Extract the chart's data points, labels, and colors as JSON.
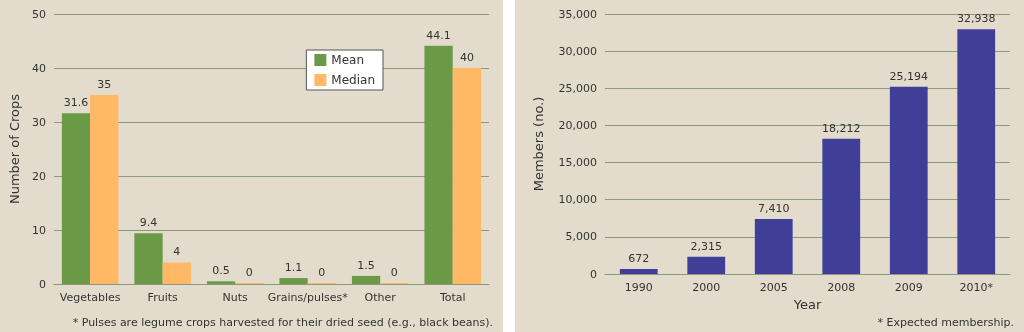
{
  "chart_data": [
    {
      "type": "bar",
      "ylabel": "Number of Crops",
      "categories": [
        "Vegetables",
        "Fruits",
        "Nuts",
        "Grains/pulses*",
        "Other",
        "Total"
      ],
      "series": [
        {
          "name": "Mean",
          "color": "#6b9a47",
          "values": [
            31.6,
            9.4,
            0.5,
            1.1,
            1.5,
            44.1
          ]
        },
        {
          "name": "Median",
          "color": "#ffb865",
          "values": [
            35,
            4,
            0,
            0,
            0,
            40
          ]
        }
      ],
      "ylim": [
        0,
        50
      ],
      "yticks": [
        0,
        10,
        20,
        30,
        40,
        50
      ],
      "grid": "y",
      "legend": "top right",
      "data_labels": true,
      "annotations": [
        "* Pulses are legume crops harvested for their dried seed (e.g., black beans)."
      ]
    },
    {
      "type": "bar",
      "xlabel": "Year",
      "ylabel": "Members (no.)",
      "categories": [
        "1990",
        "2000",
        "2005",
        "2008",
        "2009",
        "2010*"
      ],
      "series": [
        {
          "color": "#3f3f98",
          "values": [
            672,
            2315,
            7410,
            18212,
            25194,
            32938
          ],
          "value_labels": [
            "672",
            "2,315",
            "7,410",
            "18,212",
            "25,194",
            "32,938"
          ]
        }
      ],
      "ylim": [
        0,
        35000
      ],
      "yticks": [
        0,
        {
          "value": 5000,
          "label": "5,000"
        },
        {
          "value": 10000,
          "label": "10,000"
        },
        {
          "value": 15000,
          "label": "15,000"
        },
        {
          "value": 20000,
          "label": "20,000"
        },
        {
          "value": 25000,
          "label": "25,000"
        },
        {
          "value": 30000,
          "label": "30,000"
        },
        {
          "value": 35000,
          "label": "35,000"
        }
      ],
      "grid": "y",
      "legend": false,
      "annotations": [
        "* Expected membership."
      ]
    }
  ]
}
